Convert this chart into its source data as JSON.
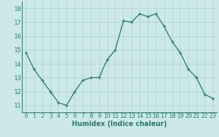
{
  "x": [
    0,
    1,
    2,
    3,
    4,
    5,
    6,
    7,
    8,
    9,
    10,
    11,
    12,
    13,
    14,
    15,
    16,
    17,
    18,
    19,
    20,
    21,
    22,
    23
  ],
  "y": [
    14.8,
    13.6,
    12.8,
    12.0,
    11.2,
    11.0,
    12.0,
    12.8,
    13.0,
    13.0,
    14.3,
    15.0,
    17.1,
    17.0,
    17.6,
    17.4,
    17.6,
    16.7,
    15.6,
    14.8,
    13.6,
    13.0,
    11.8,
    11.5
  ],
  "xlabel": "Humidex (Indice chaleur)",
  "ylim": [
    10.5,
    18.5
  ],
  "xlim": [
    -0.5,
    23.5
  ],
  "yticks": [
    11,
    12,
    13,
    14,
    15,
    16,
    17,
    18
  ],
  "xticks": [
    0,
    1,
    2,
    3,
    4,
    5,
    6,
    7,
    8,
    9,
    10,
    11,
    12,
    13,
    14,
    15,
    16,
    17,
    18,
    19,
    20,
    21,
    22,
    23
  ],
  "line_color": "#2a7a6e",
  "marker": "+",
  "bg_color": "#cce8e8",
  "grid_color": "#aacfcf",
  "tick_color": "#2a7a6e",
  "xlabel_color": "#2a7a6e",
  "xlabel_fontsize": 7,
  "tick_fontsize": 6,
  "linewidth": 1.0,
  "markersize": 3.5
}
